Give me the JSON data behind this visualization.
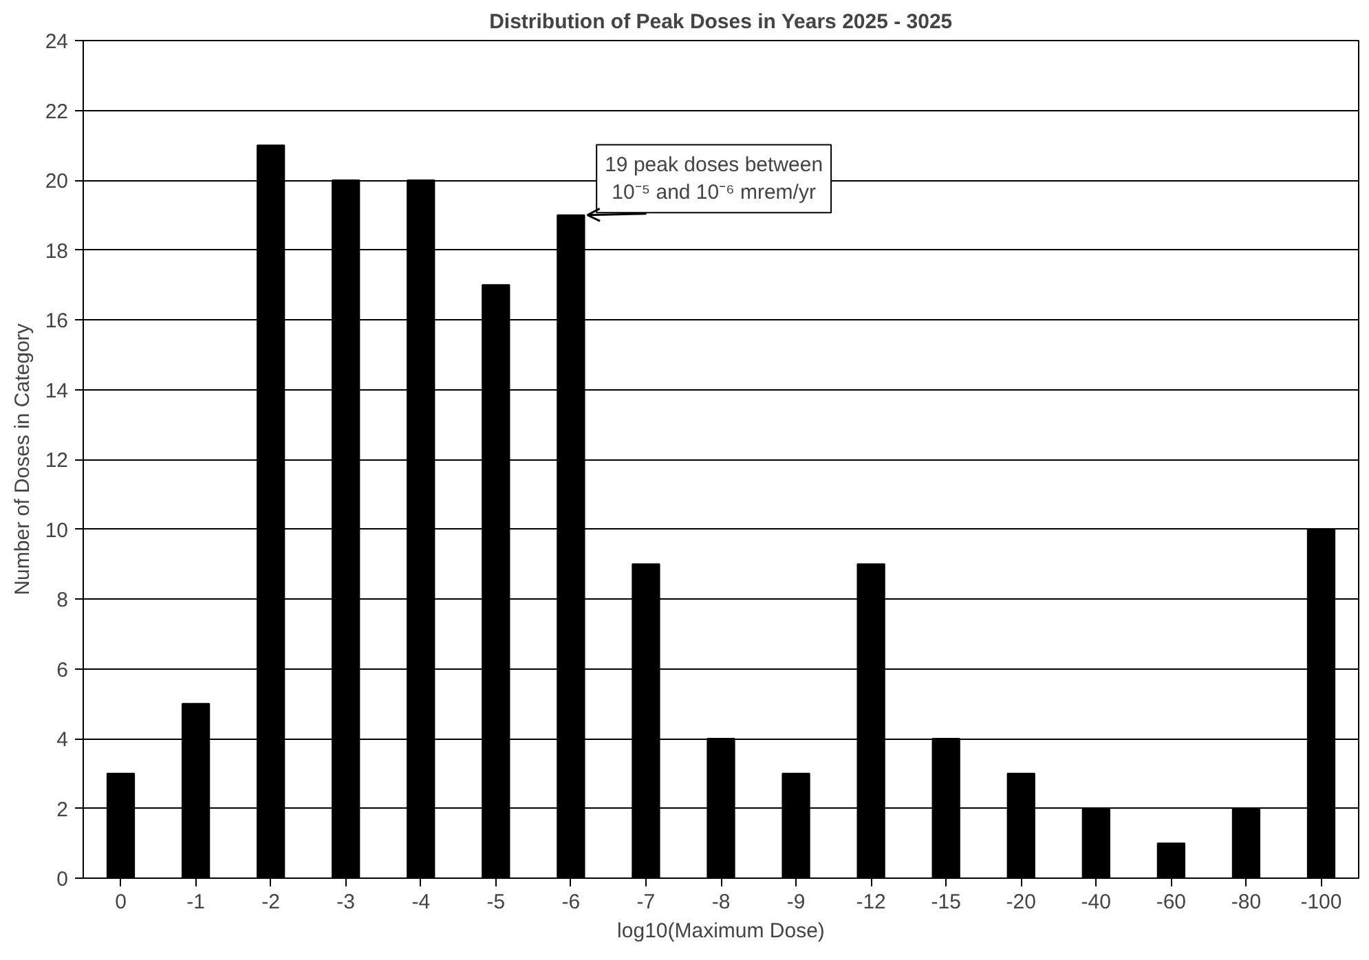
{
  "chart_data": {
    "type": "bar",
    "title": "Distribution of Peak Doses in Years 2025 - 3025",
    "xlabel": "log10(Maximum Dose)",
    "ylabel": "Number of Doses in Category",
    "categories": [
      "0",
      "-1",
      "-2",
      "-3",
      "-4",
      "-5",
      "-6",
      "-7",
      "-8",
      "-9",
      "-12",
      "-15",
      "-20",
      "-40",
      "-60",
      "-80",
      "-100"
    ],
    "values": [
      3,
      5,
      21,
      20,
      20,
      17,
      19,
      9,
      4,
      3,
      9,
      4,
      3,
      2,
      1,
      2,
      10
    ],
    "color": "#000000",
    "ylim": [
      0,
      24
    ],
    "yticks": [
      0,
      2,
      4,
      6,
      8,
      10,
      12,
      14,
      16,
      18,
      20,
      22,
      24
    ],
    "grid": "y",
    "annotations": [
      {
        "text": "19 peak doses between\n10⁻⁵ and 10⁻⁶ mrem/yr",
        "x": "-6",
        "y": 19
      }
    ]
  }
}
